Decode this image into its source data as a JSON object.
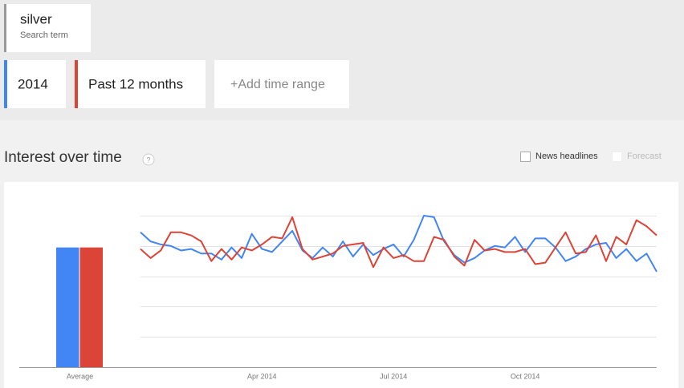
{
  "search_term": {
    "term": "silver",
    "label": "Search term"
  },
  "add_time_range": "+Add time range",
  "section_title": "Interest over time",
  "help_icon": "?",
  "options": [
    "News headlines",
    "Forecast"
  ],
  "chart_data": [
    {
      "type": "bar",
      "categories": [
        "Average"
      ],
      "ylim": [
        0,
        100
      ],
      "series": [
        {
          "name": "2014",
          "color": "#4285f4",
          "values": [
            79
          ]
        },
        {
          "name": "Past 12 months",
          "color": "#db4437",
          "values": [
            79
          ]
        }
      ]
    },
    {
      "type": "line",
      "ylim": [
        0,
        100
      ],
      "yticks": [
        0,
        20,
        40,
        60,
        80,
        100
      ],
      "grid": true,
      "categories": [
        null,
        null,
        null,
        null,
        null,
        null,
        null,
        null,
        null,
        null,
        null,
        null,
        "Apr 2014",
        null,
        null,
        null,
        null,
        null,
        null,
        null,
        null,
        null,
        null,
        null,
        null,
        "Jul 2014",
        null,
        null,
        null,
        null,
        null,
        null,
        null,
        null,
        null,
        null,
        null,
        null,
        "Oct 2014",
        null,
        null,
        null,
        null,
        null,
        null,
        null,
        null,
        null,
        null,
        null,
        null,
        null
      ],
      "series": [
        {
          "name": "2014",
          "color": "#4285f4",
          "values": [
            89,
            83,
            81,
            80,
            77,
            78,
            75,
            75,
            71,
            79,
            72,
            88,
            78,
            76,
            83,
            90,
            77,
            72,
            79,
            73,
            83,
            73,
            81,
            74,
            78,
            81,
            73,
            84,
            100,
            99,
            83,
            74,
            69,
            72,
            77,
            80,
            79,
            86,
            76,
            85,
            85,
            79,
            70,
            73,
            78,
            81,
            82,
            72,
            78,
            70,
            75,
            63
          ]
        },
        {
          "name": "Past 12 months",
          "color": "#db4437",
          "values": [
            78,
            72,
            77,
            89,
            89,
            87,
            83,
            70,
            78,
            71,
            79,
            77,
            81,
            86,
            85,
            99,
            78,
            71,
            73,
            75,
            80,
            81,
            82,
            66,
            79,
            72,
            74,
            70,
            70,
            86,
            84,
            73,
            67,
            84,
            77,
            78,
            76,
            76,
            78,
            68,
            69,
            79,
            89,
            75,
            76,
            87,
            70,
            86,
            81,
            97,
            93,
            87
          ]
        }
      ]
    }
  ]
}
